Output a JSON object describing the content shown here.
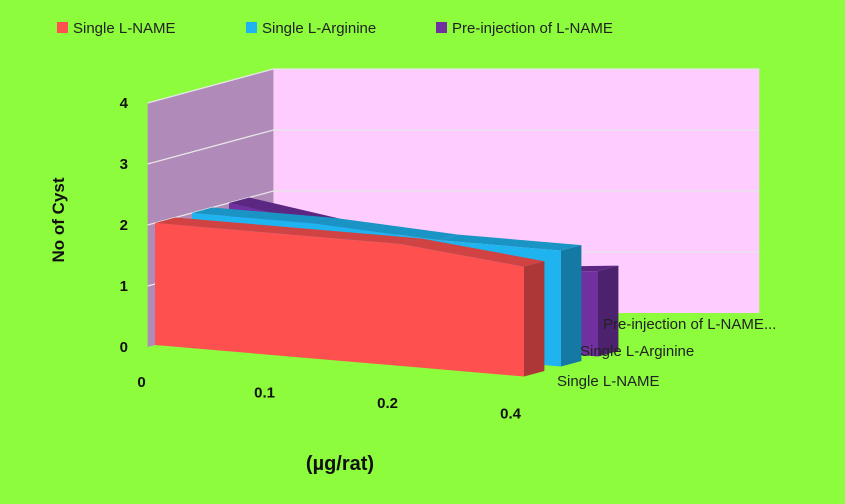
{
  "chart_data": {
    "type": "area",
    "style": "3d-ribbon",
    "xlabel": "(µg/rat)",
    "ylabel": "No of Cyst",
    "ylim": [
      0,
      4
    ],
    "yticks": [
      "0",
      "1",
      "2",
      "3",
      "4"
    ],
    "categories": [
      "0",
      "0.1",
      "0.2",
      "0.4"
    ],
    "grid": true,
    "legend_position": "top",
    "depth_labels": [
      "Pre-injection of L-NAME...",
      "Single L-Arginine",
      "Single L-NAME"
    ],
    "series": [
      {
        "name": "Single L-NAME",
        "color": "#ff5050",
        "values": [
          2.0,
          2.0,
          2.0,
          1.8
        ]
      },
      {
        "name": "Single L-Arginine",
        "color": "#1fb4f0",
        "values": [
          2.0,
          2.0,
          1.9,
          1.9
        ]
      },
      {
        "name": "Pre-injection of L-NAME",
        "color": "#7030a0",
        "values": [
          2.0,
          1.7,
          1.2,
          1.4
        ]
      }
    ],
    "colors": {
      "background": "#8cfc3c",
      "back_wall": "#ffccff",
      "side_wall": "#b08ab8",
      "floor": "#8cfc3c"
    }
  }
}
